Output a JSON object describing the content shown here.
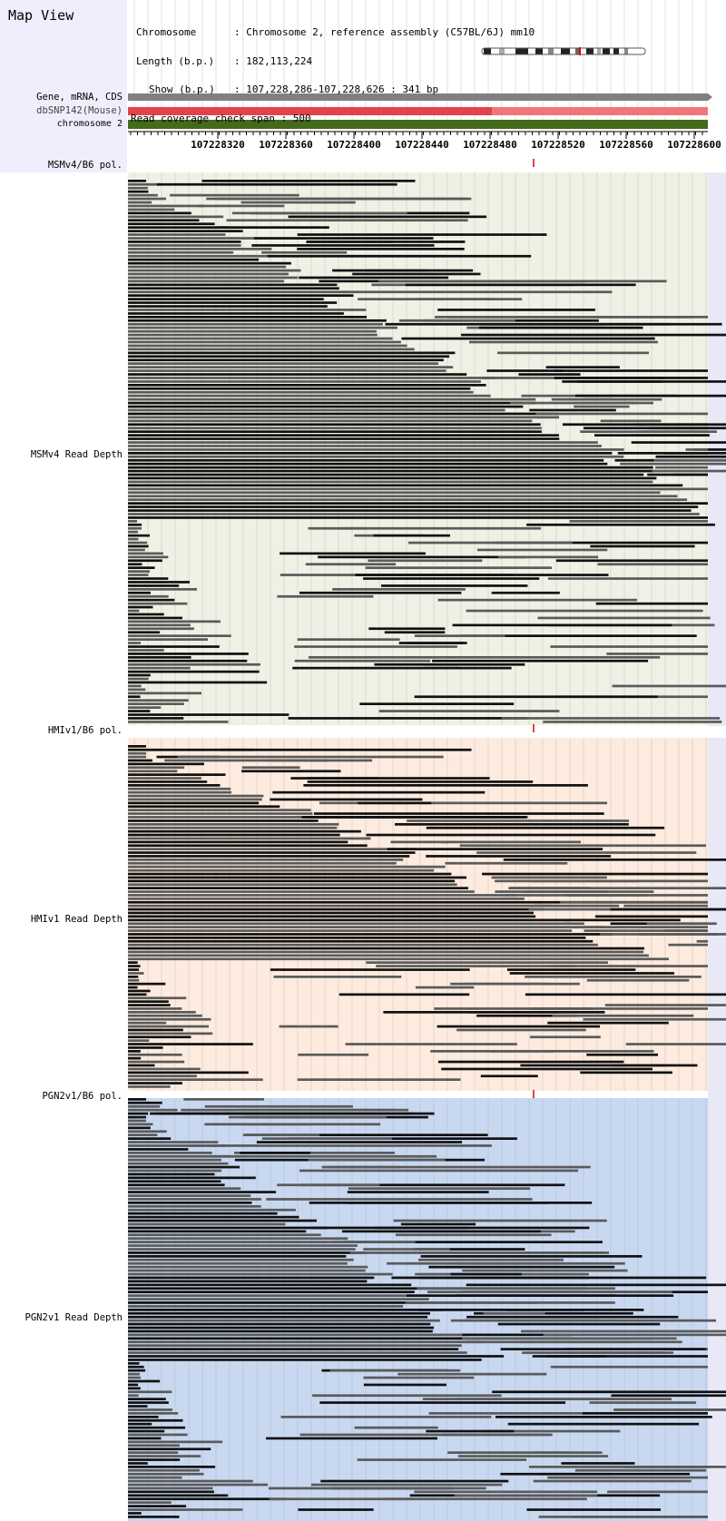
{
  "title": "Map View",
  "info": {
    "chromosome_key": "Chromosome",
    "chromosome_value": "Chromosome 2, reference assembly (C57BL/6J) mm10",
    "length_key": "Length (b.p.)",
    "length_value": "182,113,224",
    "show_key": "Show (b.p.)",
    "show_value": "107,228,286-107,228,626 : 341 bp",
    "span_text": "Read coverage check span : 500"
  },
  "tracks": {
    "gene": "Gene, mRNA, CDS",
    "dbsnp": "dbSNP142(Mouse)",
    "chromosome": "chromosome 2"
  },
  "ruler": {
    "ticks": [
      "107228320",
      "107228360",
      "107228400",
      "107228440",
      "107228480",
      "107228520",
      "107228560",
      "107228600"
    ]
  },
  "strains": [
    {
      "pol_label": "MSMv4/B6 pol.",
      "depth_label": "MSMv4 Read Depth",
      "bg": "#eef2e4"
    },
    {
      "pol_label": "HMIv1/B6 pol.",
      "depth_label": "HMIv1 Read Depth",
      "bg": "#fcebde"
    },
    {
      "pol_label": "PGN2v1/B6 pol.",
      "depth_label": "PGN2v1 Read Depth",
      "bg": "#c8d8f0"
    }
  ],
  "colors": {
    "left_panel": "#eeeefc",
    "gene_bar": "#808080",
    "dbsnp_dark": "#e4414b",
    "dbsnp_light": "#f0767c",
    "chromosome_bar": "#446a1c",
    "snp_marker": "#e00000",
    "read_gray": "#5a5a5a",
    "read_black": "#111111"
  }
}
